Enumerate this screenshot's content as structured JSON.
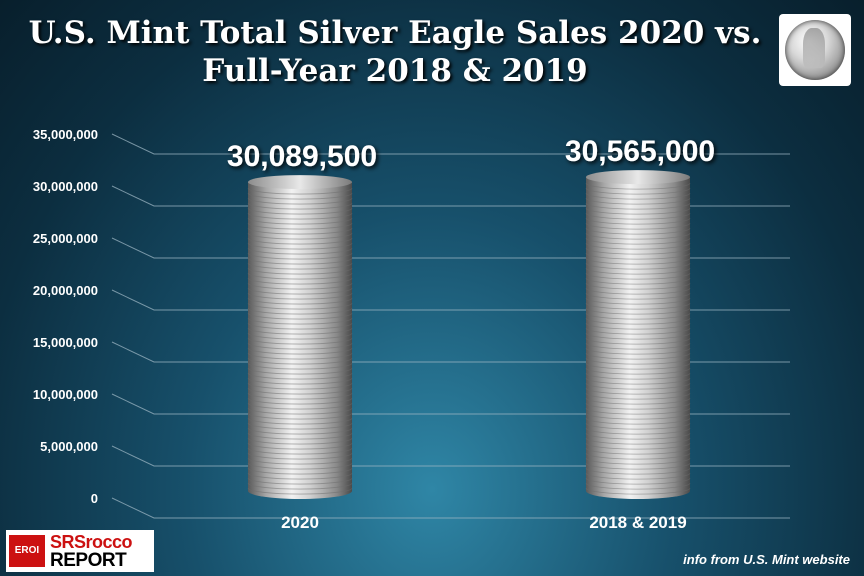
{
  "title_line1": "U.S. Mint Total Silver Eagle Sales 2020 vs.",
  "title_line2": "Full-Year 2018 & 2019",
  "logo": {
    "badge": "EROI",
    "top": "SRSrocco",
    "bottom": "REPORT"
  },
  "source": "info from U.S. Mint website",
  "icon": "silver-eagle-coin-icon",
  "chart_data": {
    "type": "bar",
    "categories": [
      "2020",
      "2018 & 2019"
    ],
    "values": [
      30089500,
      30565000
    ],
    "data_labels": [
      "30,089,500",
      "30,565,000"
    ],
    "title": "U.S. Mint Total Silver Eagle Sales 2020 vs. Full-Year 2018 & 2019",
    "ylim": [
      0,
      35000000
    ],
    "yticks": [
      0,
      5000000,
      10000000,
      15000000,
      20000000,
      25000000,
      30000000,
      35000000
    ],
    "ytick_labels": [
      "0",
      "5,000,000",
      "10,000,000",
      "15,000,000",
      "20,000,000",
      "25,000,000",
      "30,000,000",
      "35,000,000"
    ],
    "grid": true,
    "legend": false
  }
}
